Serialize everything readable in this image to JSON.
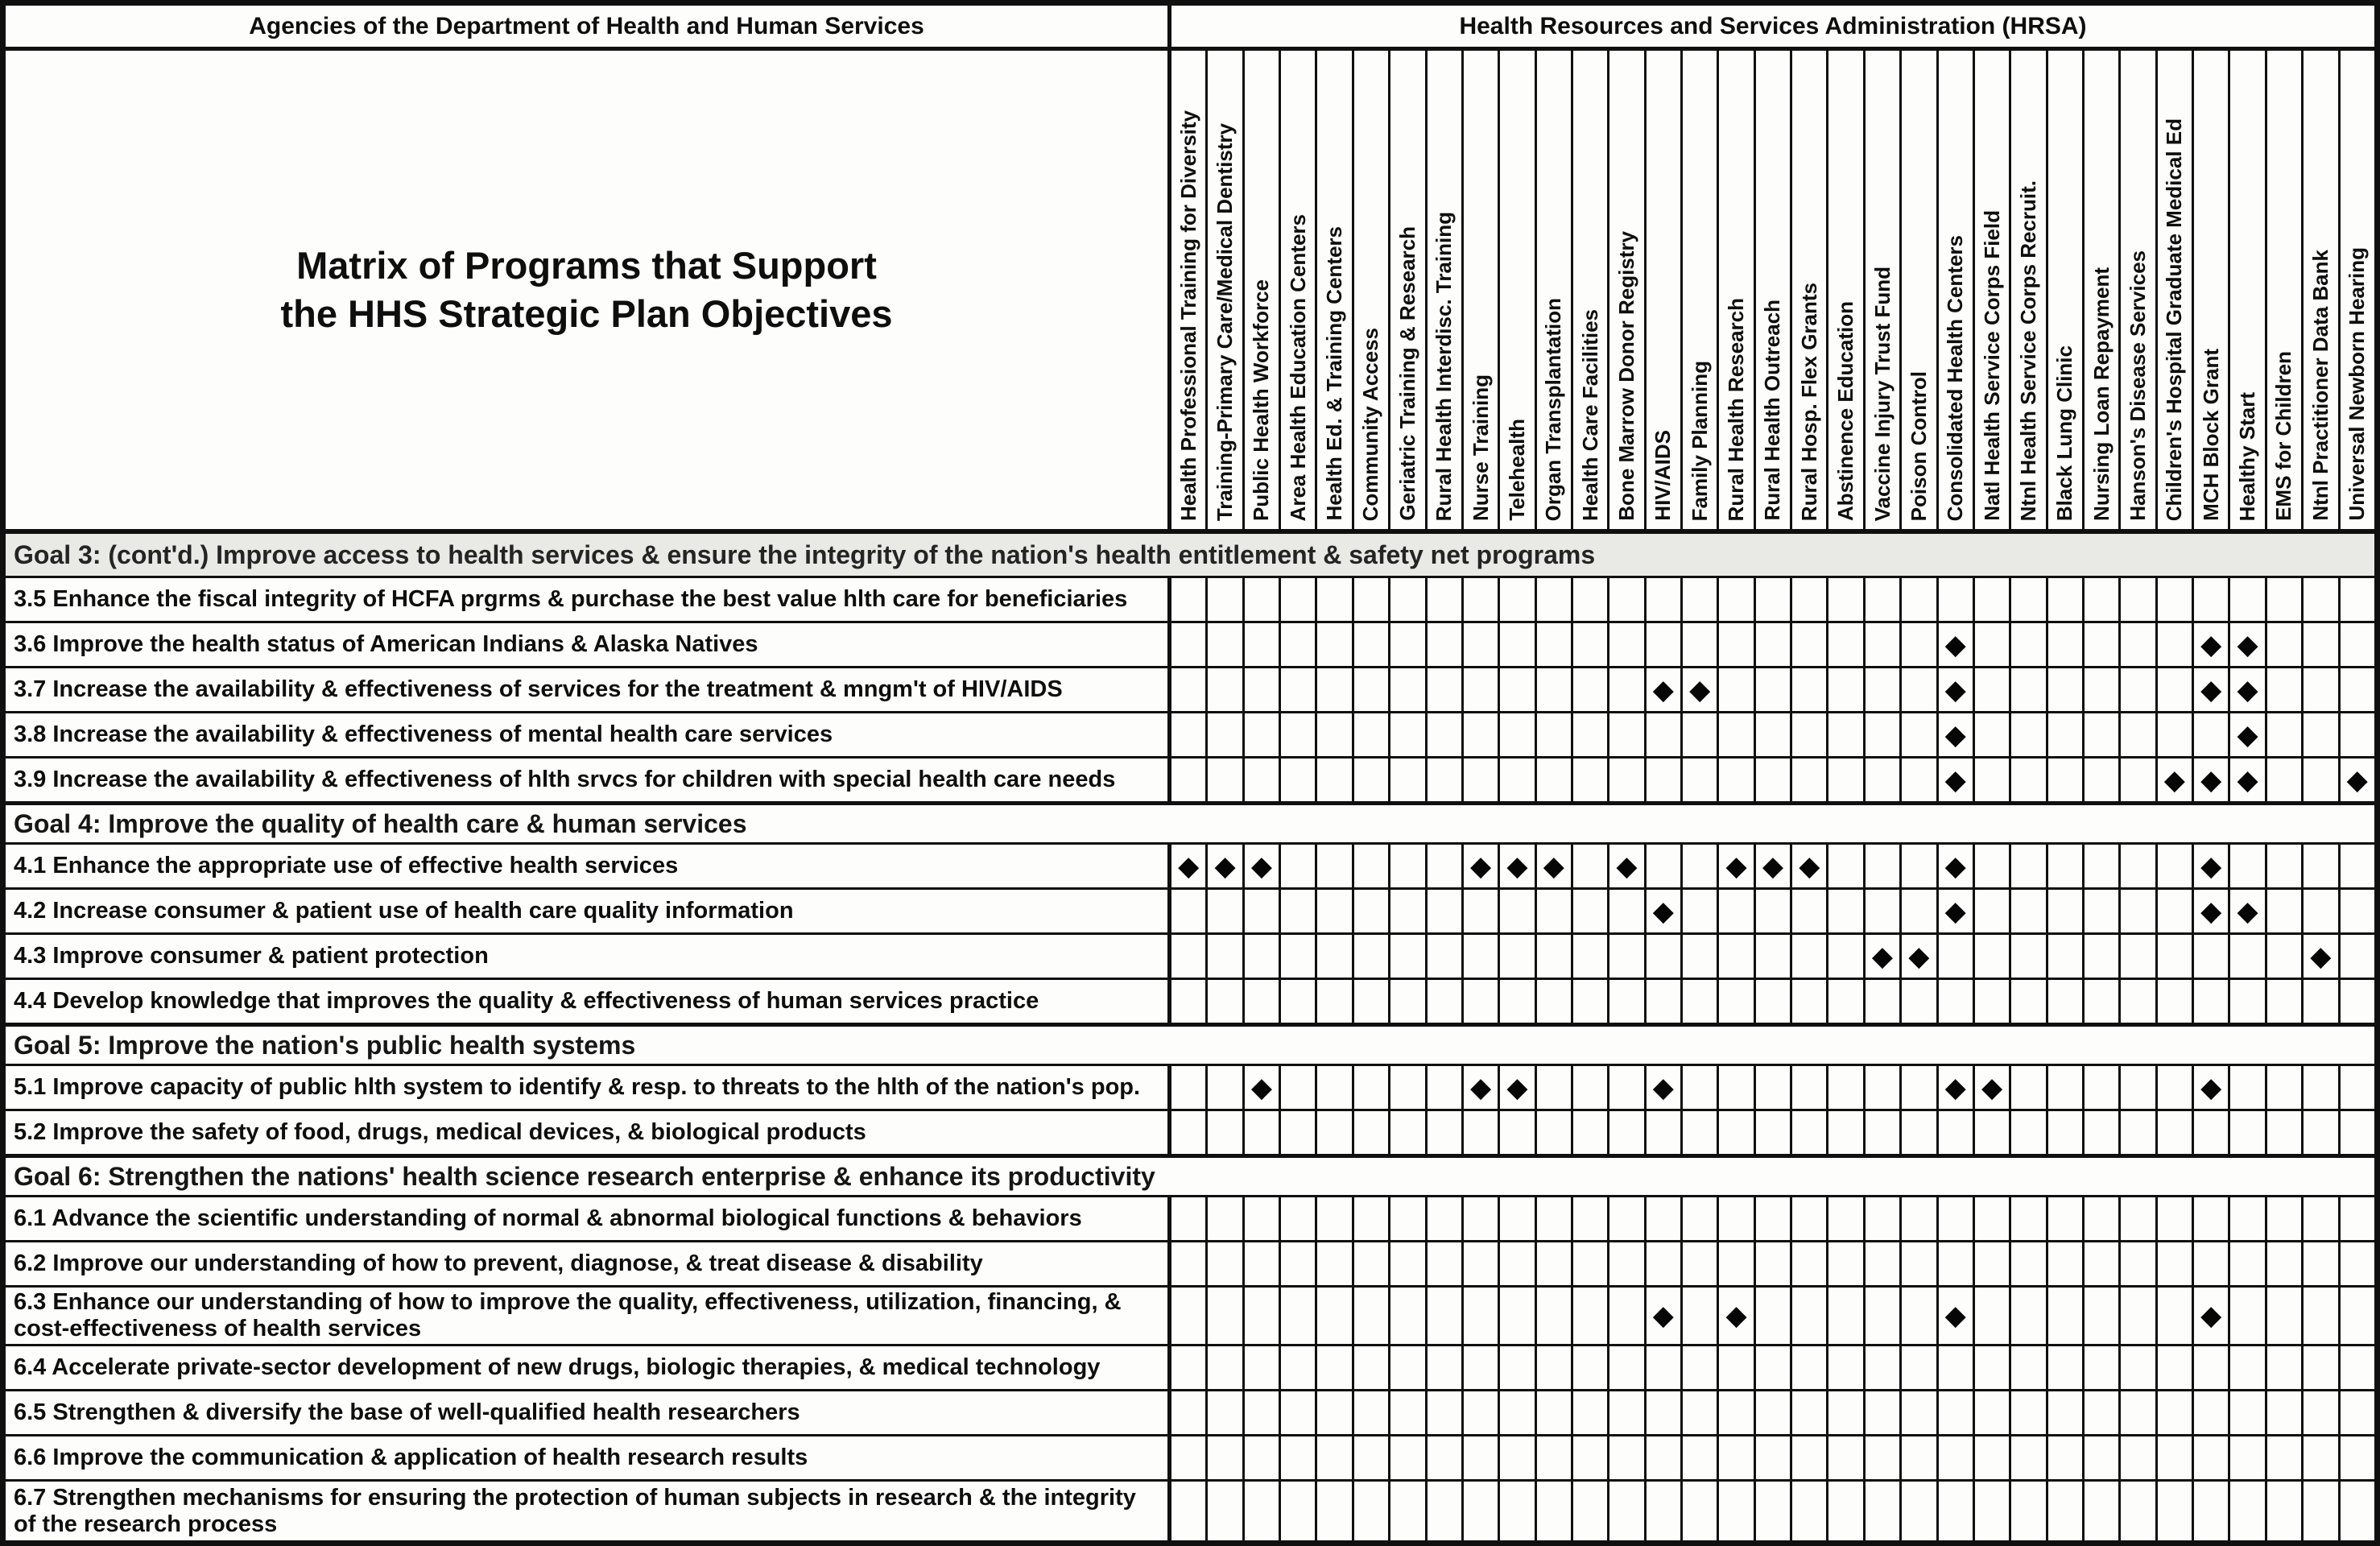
{
  "header": {
    "left": "Agencies of the Department of Health and Human Services",
    "right": "Health Resources and Services Administration (HRSA)"
  },
  "title": {
    "line1": "Matrix of Programs that Support",
    "line2": "the HHS Strategic Plan Objectives"
  },
  "mark_glyph": "◆",
  "colors": {
    "grid_line": "#101010",
    "cell_bg": "#fdfdfc",
    "page_bg": "#f4f4f1",
    "goal3_bar_bg": "#e9e9e6",
    "text": "#0e0e0e"
  },
  "columns": [
    "Health Professional Training for Diversity",
    "Training-Primary Care/Medical Dentistry",
    "Public Health Workforce",
    "Area Health Education Centers",
    "Health Ed. & Training Centers",
    "Community Access",
    "Geriatric Training & Research",
    "Rural Health Interdisc. Training",
    "Nurse Training",
    "Telehealth",
    "Organ Transplantation",
    "Health Care Facilities",
    "Bone Marrow Donor Registry",
    "HIV/AIDS",
    "Family Planning",
    "Rural Health Research",
    "Rural Health Outreach",
    "Rural Hosp. Flex Grants",
    "Abstinence Education",
    "Vaccine Injury Trust Fund",
    "Poison Control",
    "Consolidated Health Centers",
    "Natl Health Service Corps Field",
    "Ntnl Health Service Corps Recruit.",
    "Black Lung Clinic",
    "Nursing Loan Repayment",
    "Hanson's Disease Services",
    "Children's Hospital Graduate Medical Ed",
    "MCH Block Grant",
    "Healthy Start",
    "EMS for Children",
    "Ntnl Practitioner Data Bank",
    "Universal Newborn Hearing"
  ],
  "sections": [
    {
      "type": "goal",
      "shaded": true,
      "first": true,
      "label": "Goal 3: (cont'd.) Improve access to health services & ensure the integrity of the nation's health entitlement & safety net programs"
    },
    {
      "type": "row",
      "label": "3.5 Enhance the fiscal integrity of HCFA prgrms & purchase the best value hlth care for beneficiaries",
      "marks": []
    },
    {
      "type": "row",
      "label": "3.6 Improve the health status of American Indians & Alaska Natives",
      "marks": [
        22,
        29,
        30
      ]
    },
    {
      "type": "row",
      "label": "3.7 Increase the availability & effectiveness of services for the treatment & mngm't of HIV/AIDS",
      "marks": [
        14,
        15,
        22,
        29,
        30
      ]
    },
    {
      "type": "row",
      "label": "3.8 Increase the availability & effectiveness of mental health care services",
      "marks": [
        22,
        30
      ]
    },
    {
      "type": "row",
      "label": "3.9 Increase the availability & effectiveness of hlth srvcs for children with special health care needs",
      "marks": [
        22,
        28,
        29,
        30,
        33
      ]
    },
    {
      "type": "goal",
      "shaded": false,
      "label": "Goal 4: Improve the quality of health care & human services"
    },
    {
      "type": "row",
      "label": "4.1 Enhance the appropriate use of effective health services",
      "marks": [
        1,
        2,
        3,
        9,
        10,
        11,
        13,
        16,
        17,
        18,
        22,
        29
      ]
    },
    {
      "type": "row",
      "label": "4.2 Increase consumer & patient use of health care quality information",
      "marks": [
        14,
        22,
        29,
        30
      ]
    },
    {
      "type": "row",
      "label": "4.3 Improve consumer & patient protection",
      "marks": [
        20,
        21,
        32
      ]
    },
    {
      "type": "row",
      "label": "4.4 Develop knowledge that improves the quality &  effectiveness of  human services practice",
      "marks": []
    },
    {
      "type": "goal",
      "shaded": false,
      "label": "Goal 5: Improve the nation's public health systems"
    },
    {
      "type": "row",
      "label": "5.1 Improve capacity of public hlth system to identify & resp. to threats to the hlth of the nation's pop.",
      "marks": [
        3,
        9,
        10,
        14,
        22,
        23,
        29
      ]
    },
    {
      "type": "row",
      "label": "5.2 Improve the safety of  food, drugs, medical devices, & biological products",
      "marks": []
    },
    {
      "type": "goal",
      "shaded": false,
      "label": "Goal 6: Strengthen the nations' health science research enterprise & enhance its productivity"
    },
    {
      "type": "row",
      "label": "6.1 Advance the scientific understanding of normal & abnormal biological functions & behaviors",
      "marks": []
    },
    {
      "type": "row",
      "label": "6.2 Improve our understanding of how to prevent, diagnose, & treat  disease & disability",
      "marks": []
    },
    {
      "type": "row",
      "tall": true,
      "label": "6.3 Enhance our understanding of how to improve the quality, effectiveness, utilization, financing, & cost-effectiveness of health services",
      "marks": [
        14,
        16,
        22,
        29
      ]
    },
    {
      "type": "row",
      "label": "6.4 Accelerate private-sector development of new drugs, biologic therapies, & medical technology",
      "marks": []
    },
    {
      "type": "row",
      "label": "6.5 Strengthen & diversify the base of well-qualified health researchers",
      "marks": []
    },
    {
      "type": "row",
      "label": "6.6 Improve the communication & application of health research results",
      "marks": []
    },
    {
      "type": "row",
      "tall": true,
      "label": "6.7 Strengthen mechanisms for ensuring the protection of human subjects in research & the integrity of the research process",
      "marks": []
    }
  ]
}
